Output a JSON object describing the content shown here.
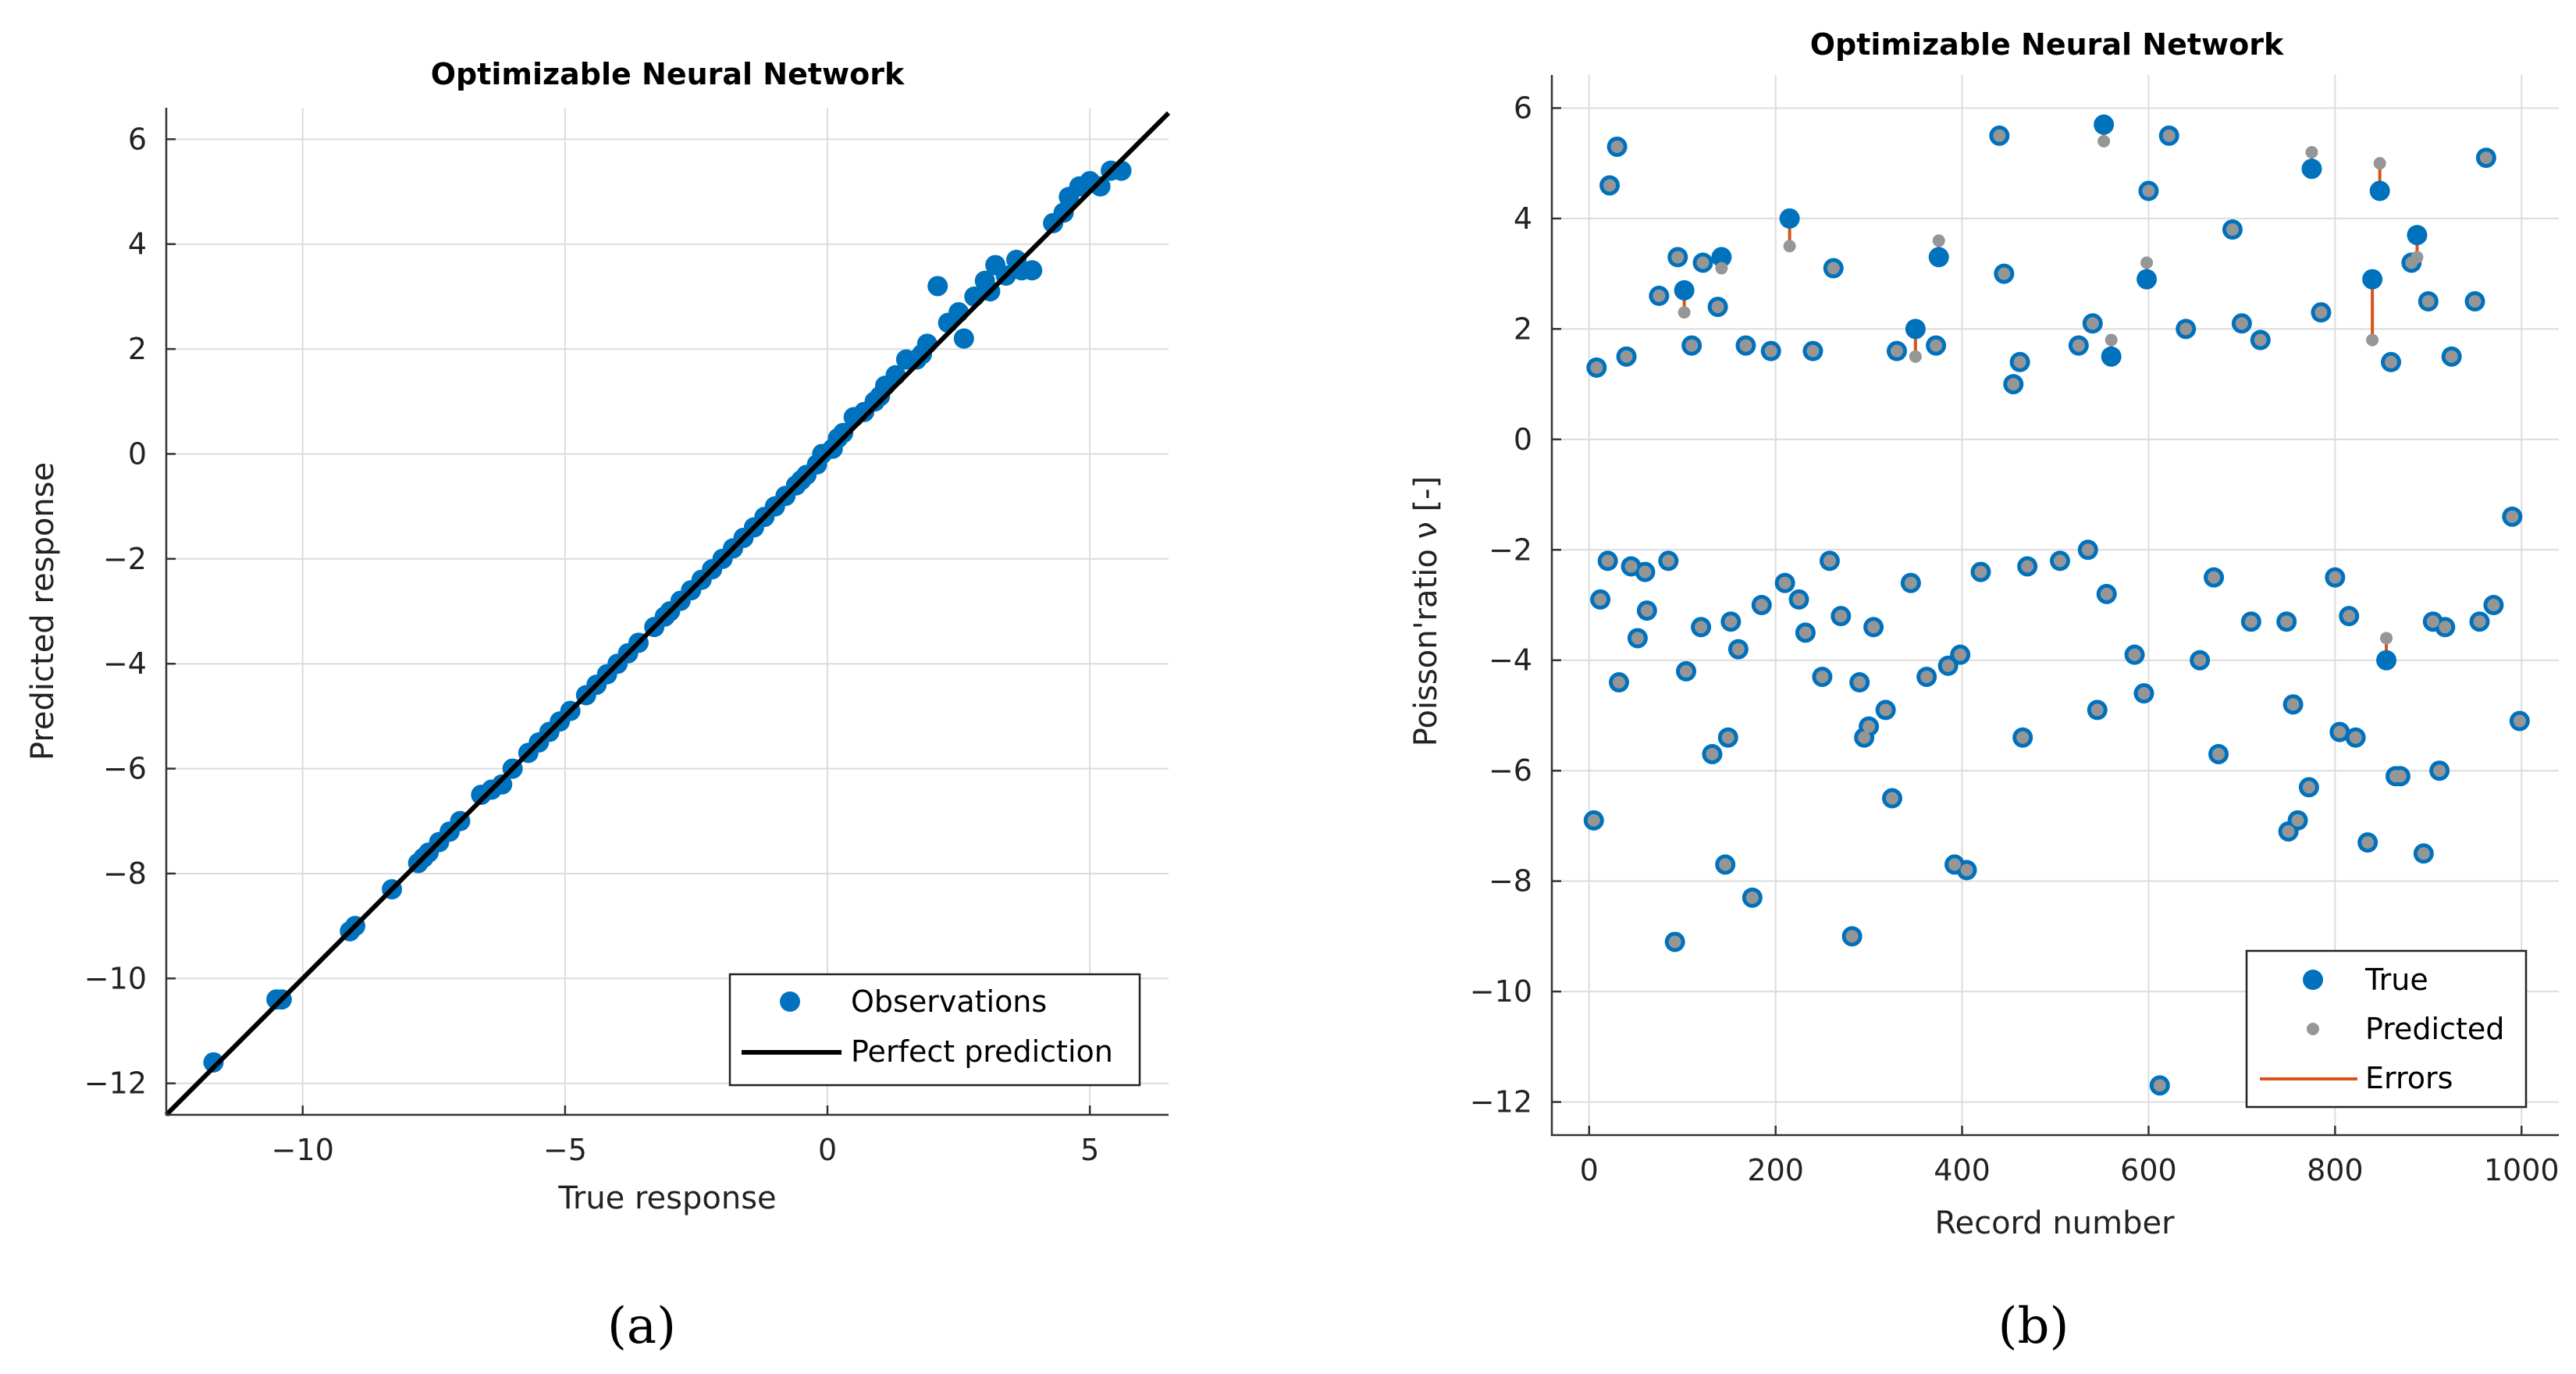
{
  "chart_data": [
    {
      "type": "scatter",
      "title": "Optimizable Neural Network",
      "xlabel": "True response",
      "ylabel": "Predicted response",
      "xlim": [
        -12.6,
        6.5
      ],
      "ylim": [
        -12.6,
        6.6
      ],
      "xticks": [
        -10,
        -5,
        0,
        5
      ],
      "yticks": [
        -12,
        -10,
        -8,
        -6,
        -4,
        -2,
        0,
        2,
        4,
        6
      ],
      "grid": true,
      "legend_position": "bottom-right",
      "caption": "(a)",
      "series": [
        {
          "name": "Observations",
          "color": "#0072BD",
          "kind": "markers"
        },
        {
          "name": "Perfect prediction",
          "color": "#000000",
          "kind": "line",
          "x": [
            -12.6,
            6.5
          ],
          "y": [
            -12.6,
            6.5
          ]
        }
      ],
      "points": [
        [
          -11.7,
          -11.6
        ],
        [
          -10.5,
          -10.4
        ],
        [
          -10.4,
          -10.4
        ],
        [
          -9.1,
          -9.1
        ],
        [
          -9.0,
          -9.0
        ],
        [
          -8.3,
          -8.3
        ],
        [
          -7.8,
          -7.8
        ],
        [
          -7.7,
          -7.7
        ],
        [
          -7.6,
          -7.6
        ],
        [
          -7.4,
          -7.4
        ],
        [
          -7.2,
          -7.2
        ],
        [
          -7.0,
          -7.0
        ],
        [
          -6.6,
          -6.5
        ],
        [
          -6.4,
          -6.4
        ],
        [
          -6.2,
          -6.3
        ],
        [
          -6.0,
          -6.0
        ],
        [
          -5.7,
          -5.7
        ],
        [
          -5.5,
          -5.5
        ],
        [
          -5.3,
          -5.3
        ],
        [
          -5.1,
          -5.1
        ],
        [
          -4.9,
          -4.9
        ],
        [
          -4.6,
          -4.6
        ],
        [
          -4.4,
          -4.4
        ],
        [
          -4.2,
          -4.2
        ],
        [
          -4.0,
          -4.0
        ],
        [
          -3.8,
          -3.8
        ],
        [
          -3.6,
          -3.6
        ],
        [
          -3.3,
          -3.3
        ],
        [
          -3.1,
          -3.1
        ],
        [
          -2.8,
          -2.8
        ],
        [
          -2.6,
          -2.6
        ],
        [
          -2.4,
          -2.4
        ],
        [
          -2.2,
          -2.2
        ],
        [
          -2.0,
          -2.0
        ],
        [
          -1.8,
          -1.8
        ],
        [
          -1.6,
          -1.6
        ],
        [
          -1.4,
          -1.4
        ],
        [
          -1.2,
          -1.2
        ],
        [
          -1.0,
          -1.0
        ],
        [
          -0.8,
          -0.8
        ],
        [
          -0.6,
          -0.6
        ],
        [
          -0.4,
          -0.4
        ],
        [
          -0.2,
          -0.2
        ],
        [
          -0.1,
          0.0
        ],
        [
          0.1,
          0.1
        ],
        [
          0.3,
          0.4
        ],
        [
          0.5,
          0.7
        ],
        [
          0.7,
          0.8
        ],
        [
          0.9,
          1.0
        ],
        [
          1.1,
          1.3
        ],
        [
          1.3,
          1.5
        ],
        [
          1.5,
          1.8
        ],
        [
          1.7,
          1.8
        ],
        [
          1.9,
          2.1
        ],
        [
          2.1,
          3.2
        ],
        [
          2.3,
          2.5
        ],
        [
          2.5,
          2.7
        ],
        [
          2.6,
          2.2
        ],
        [
          2.8,
          3.0
        ],
        [
          3.0,
          3.3
        ],
        [
          3.2,
          3.6
        ],
        [
          3.4,
          3.4
        ],
        [
          3.6,
          3.7
        ],
        [
          3.7,
          3.5
        ],
        [
          3.9,
          3.5
        ],
        [
          4.3,
          4.4
        ],
        [
          4.6,
          4.9
        ],
        [
          4.8,
          5.1
        ],
        [
          5.0,
          5.2
        ],
        [
          5.2,
          5.1
        ],
        [
          5.4,
          5.4
        ],
        [
          5.6,
          5.4
        ],
        [
          0.2,
          0.3
        ],
        [
          1.0,
          1.1
        ],
        [
          1.8,
          1.9
        ],
        [
          3.1,
          3.1
        ],
        [
          -0.5,
          -0.5
        ],
        [
          -3.0,
          -3.0
        ],
        [
          4.5,
          4.6
        ]
      ]
    },
    {
      "type": "scatter",
      "title": "Optimizable Neural Network",
      "xlabel": "Record number",
      "ylabel": "Poisson'ratio ν [-]",
      "xlim": [
        -40,
        1040
      ],
      "ylim": [
        -12.6,
        6.6
      ],
      "xticks": [
        0,
        200,
        400,
        600,
        800,
        1000
      ],
      "yticks": [
        -12,
        -10,
        -8,
        -6,
        -4,
        -2,
        0,
        2,
        4,
        6
      ],
      "grid": true,
      "legend_position": "bottom-right",
      "caption": "(b)",
      "series": [
        {
          "name": "True",
          "color": "#0072BD",
          "kind": "markers"
        },
        {
          "name": "Predicted",
          "color": "#969696",
          "kind": "markers"
        },
        {
          "name": "Errors",
          "color": "#D95319",
          "kind": "line"
        }
      ],
      "points": [
        [
          5,
          -6.9,
          -6.9
        ],
        [
          8,
          1.3,
          1.3
        ],
        [
          12,
          -2.9,
          -2.9
        ],
        [
          20,
          -2.2,
          -2.2
        ],
        [
          22,
          4.6,
          4.6
        ],
        [
          30,
          5.3,
          5.3
        ],
        [
          32,
          -4.4,
          -4.4
        ],
        [
          40,
          1.5,
          1.5
        ],
        [
          45,
          -2.3,
          -2.3
        ],
        [
          52,
          -3.6,
          -3.6
        ],
        [
          60,
          -2.4,
          -2.4
        ],
        [
          62,
          -3.1,
          -3.1
        ],
        [
          75,
          2.6,
          2.6
        ],
        [
          85,
          -2.2,
          -2.2
        ],
        [
          92,
          -9.1,
          -9.1
        ],
        [
          95,
          3.3,
          3.3
        ],
        [
          102,
          2.7,
          2.3
        ],
        [
          104,
          -4.2,
          -4.2
        ],
        [
          110,
          1.7,
          1.7
        ],
        [
          120,
          -3.4,
          -3.4
        ],
        [
          122,
          3.2,
          3.2
        ],
        [
          132,
          -5.7,
          -5.7
        ],
        [
          138,
          2.4,
          2.4
        ],
        [
          142,
          3.3,
          3.1
        ],
        [
          146,
          -7.7,
          -7.7
        ],
        [
          149,
          -5.4,
          -5.4
        ],
        [
          152,
          -3.3,
          -3.3
        ],
        [
          160,
          -3.8,
          -3.8
        ],
        [
          168,
          1.7,
          1.7
        ],
        [
          175,
          -8.3,
          -8.3
        ],
        [
          185,
          -3.0,
          -3.0
        ],
        [
          195,
          1.6,
          1.6
        ],
        [
          210,
          -2.6,
          -2.6
        ],
        [
          215,
          4.0,
          3.5
        ],
        [
          225,
          -2.9,
          -2.9
        ],
        [
          232,
          -3.5,
          -3.5
        ],
        [
          240,
          1.6,
          1.6
        ],
        [
          250,
          -4.3,
          -4.3
        ],
        [
          258,
          -2.2,
          -2.2
        ],
        [
          262,
          3.1,
          3.1
        ],
        [
          270,
          -3.2,
          -3.2
        ],
        [
          282,
          -9.0,
          -9.0
        ],
        [
          290,
          -4.4,
          -4.4
        ],
        [
          295,
          -5.4,
          -5.4
        ],
        [
          300,
          -5.2,
          -5.2
        ],
        [
          305,
          -3.4,
          -3.4
        ],
        [
          318,
          -4.9,
          -4.9
        ],
        [
          325,
          -6.5,
          -6.5
        ],
        [
          330,
          1.6,
          1.6
        ],
        [
          345,
          -2.6,
          -2.6
        ],
        [
          350,
          2.0,
          1.5
        ],
        [
          362,
          -4.3,
          -4.3
        ],
        [
          372,
          1.7,
          1.7
        ],
        [
          375,
          3.3,
          3.6
        ],
        [
          385,
          -4.1,
          -4.1
        ],
        [
          392,
          -7.7,
          -7.7
        ],
        [
          398,
          -3.9,
          -3.9
        ],
        [
          405,
          -7.8,
          -7.8
        ],
        [
          420,
          -2.4,
          -2.4
        ],
        [
          440,
          5.5,
          5.5
        ],
        [
          445,
          3.0,
          3.0
        ],
        [
          455,
          1.0,
          1.0
        ],
        [
          462,
          1.4,
          1.4
        ],
        [
          465,
          -5.4,
          -5.4
        ],
        [
          470,
          -2.3,
          -2.3
        ],
        [
          505,
          -2.2,
          -2.2
        ],
        [
          525,
          1.7,
          1.7
        ],
        [
          535,
          -2.0,
          -2.0
        ],
        [
          540,
          2.1,
          2.1
        ],
        [
          545,
          -4.9,
          -4.9
        ],
        [
          552,
          5.7,
          5.4
        ],
        [
          555,
          -2.8,
          -2.8
        ],
        [
          560,
          1.5,
          1.8
        ],
        [
          585,
          -3.9,
          -3.9
        ],
        [
          595,
          -4.6,
          -4.6
        ],
        [
          598,
          2.9,
          3.2
        ],
        [
          600,
          4.5,
          4.5
        ],
        [
          612,
          -11.7,
          -11.7
        ],
        [
          622,
          5.5,
          5.5
        ],
        [
          640,
          2.0,
          2.0
        ],
        [
          655,
          -4.0,
          -4.0
        ],
        [
          670,
          -2.5,
          -2.5
        ],
        [
          675,
          -5.7,
          -5.7
        ],
        [
          690,
          3.8,
          3.8
        ],
        [
          700,
          2.1,
          2.1
        ],
        [
          710,
          -3.3,
          -3.3
        ],
        [
          720,
          1.8,
          1.8
        ],
        [
          748,
          -3.3,
          -3.3
        ],
        [
          750,
          -7.1,
          -7.1
        ],
        [
          755,
          -4.8,
          -4.8
        ],
        [
          760,
          -6.9,
          -6.9
        ],
        [
          772,
          -6.3,
          -6.3
        ],
        [
          775,
          4.9,
          5.2
        ],
        [
          785,
          2.3,
          2.3
        ],
        [
          800,
          -2.5,
          -2.5
        ],
        [
          805,
          -5.3,
          -5.3
        ],
        [
          815,
          -3.2,
          -3.2
        ],
        [
          822,
          -5.4,
          -5.4
        ],
        [
          835,
          -7.3,
          -7.3
        ],
        [
          840,
          2.9,
          1.8
        ],
        [
          848,
          4.5,
          5.0
        ],
        [
          855,
          -4.0,
          -3.6
        ],
        [
          860,
          1.4,
          1.4
        ],
        [
          865,
          -6.1,
          -6.1
        ],
        [
          870,
          -6.1,
          -6.1
        ],
        [
          882,
          3.2,
          3.2
        ],
        [
          888,
          3.7,
          3.3
        ],
        [
          895,
          -7.5,
          -7.5
        ],
        [
          900,
          2.5,
          2.5
        ],
        [
          905,
          -3.3,
          -3.3
        ],
        [
          912,
          -6.0,
          -6.0
        ],
        [
          918,
          -3.4,
          -3.4
        ],
        [
          925,
          1.5,
          1.5
        ],
        [
          950,
          2.5,
          2.5
        ],
        [
          955,
          -3.3,
          -3.3
        ],
        [
          962,
          5.1,
          5.1
        ],
        [
          970,
          -3.0,
          -3.0
        ],
        [
          990,
          -1.4,
          -1.4
        ],
        [
          998,
          -5.1,
          -5.1
        ]
      ]
    }
  ]
}
